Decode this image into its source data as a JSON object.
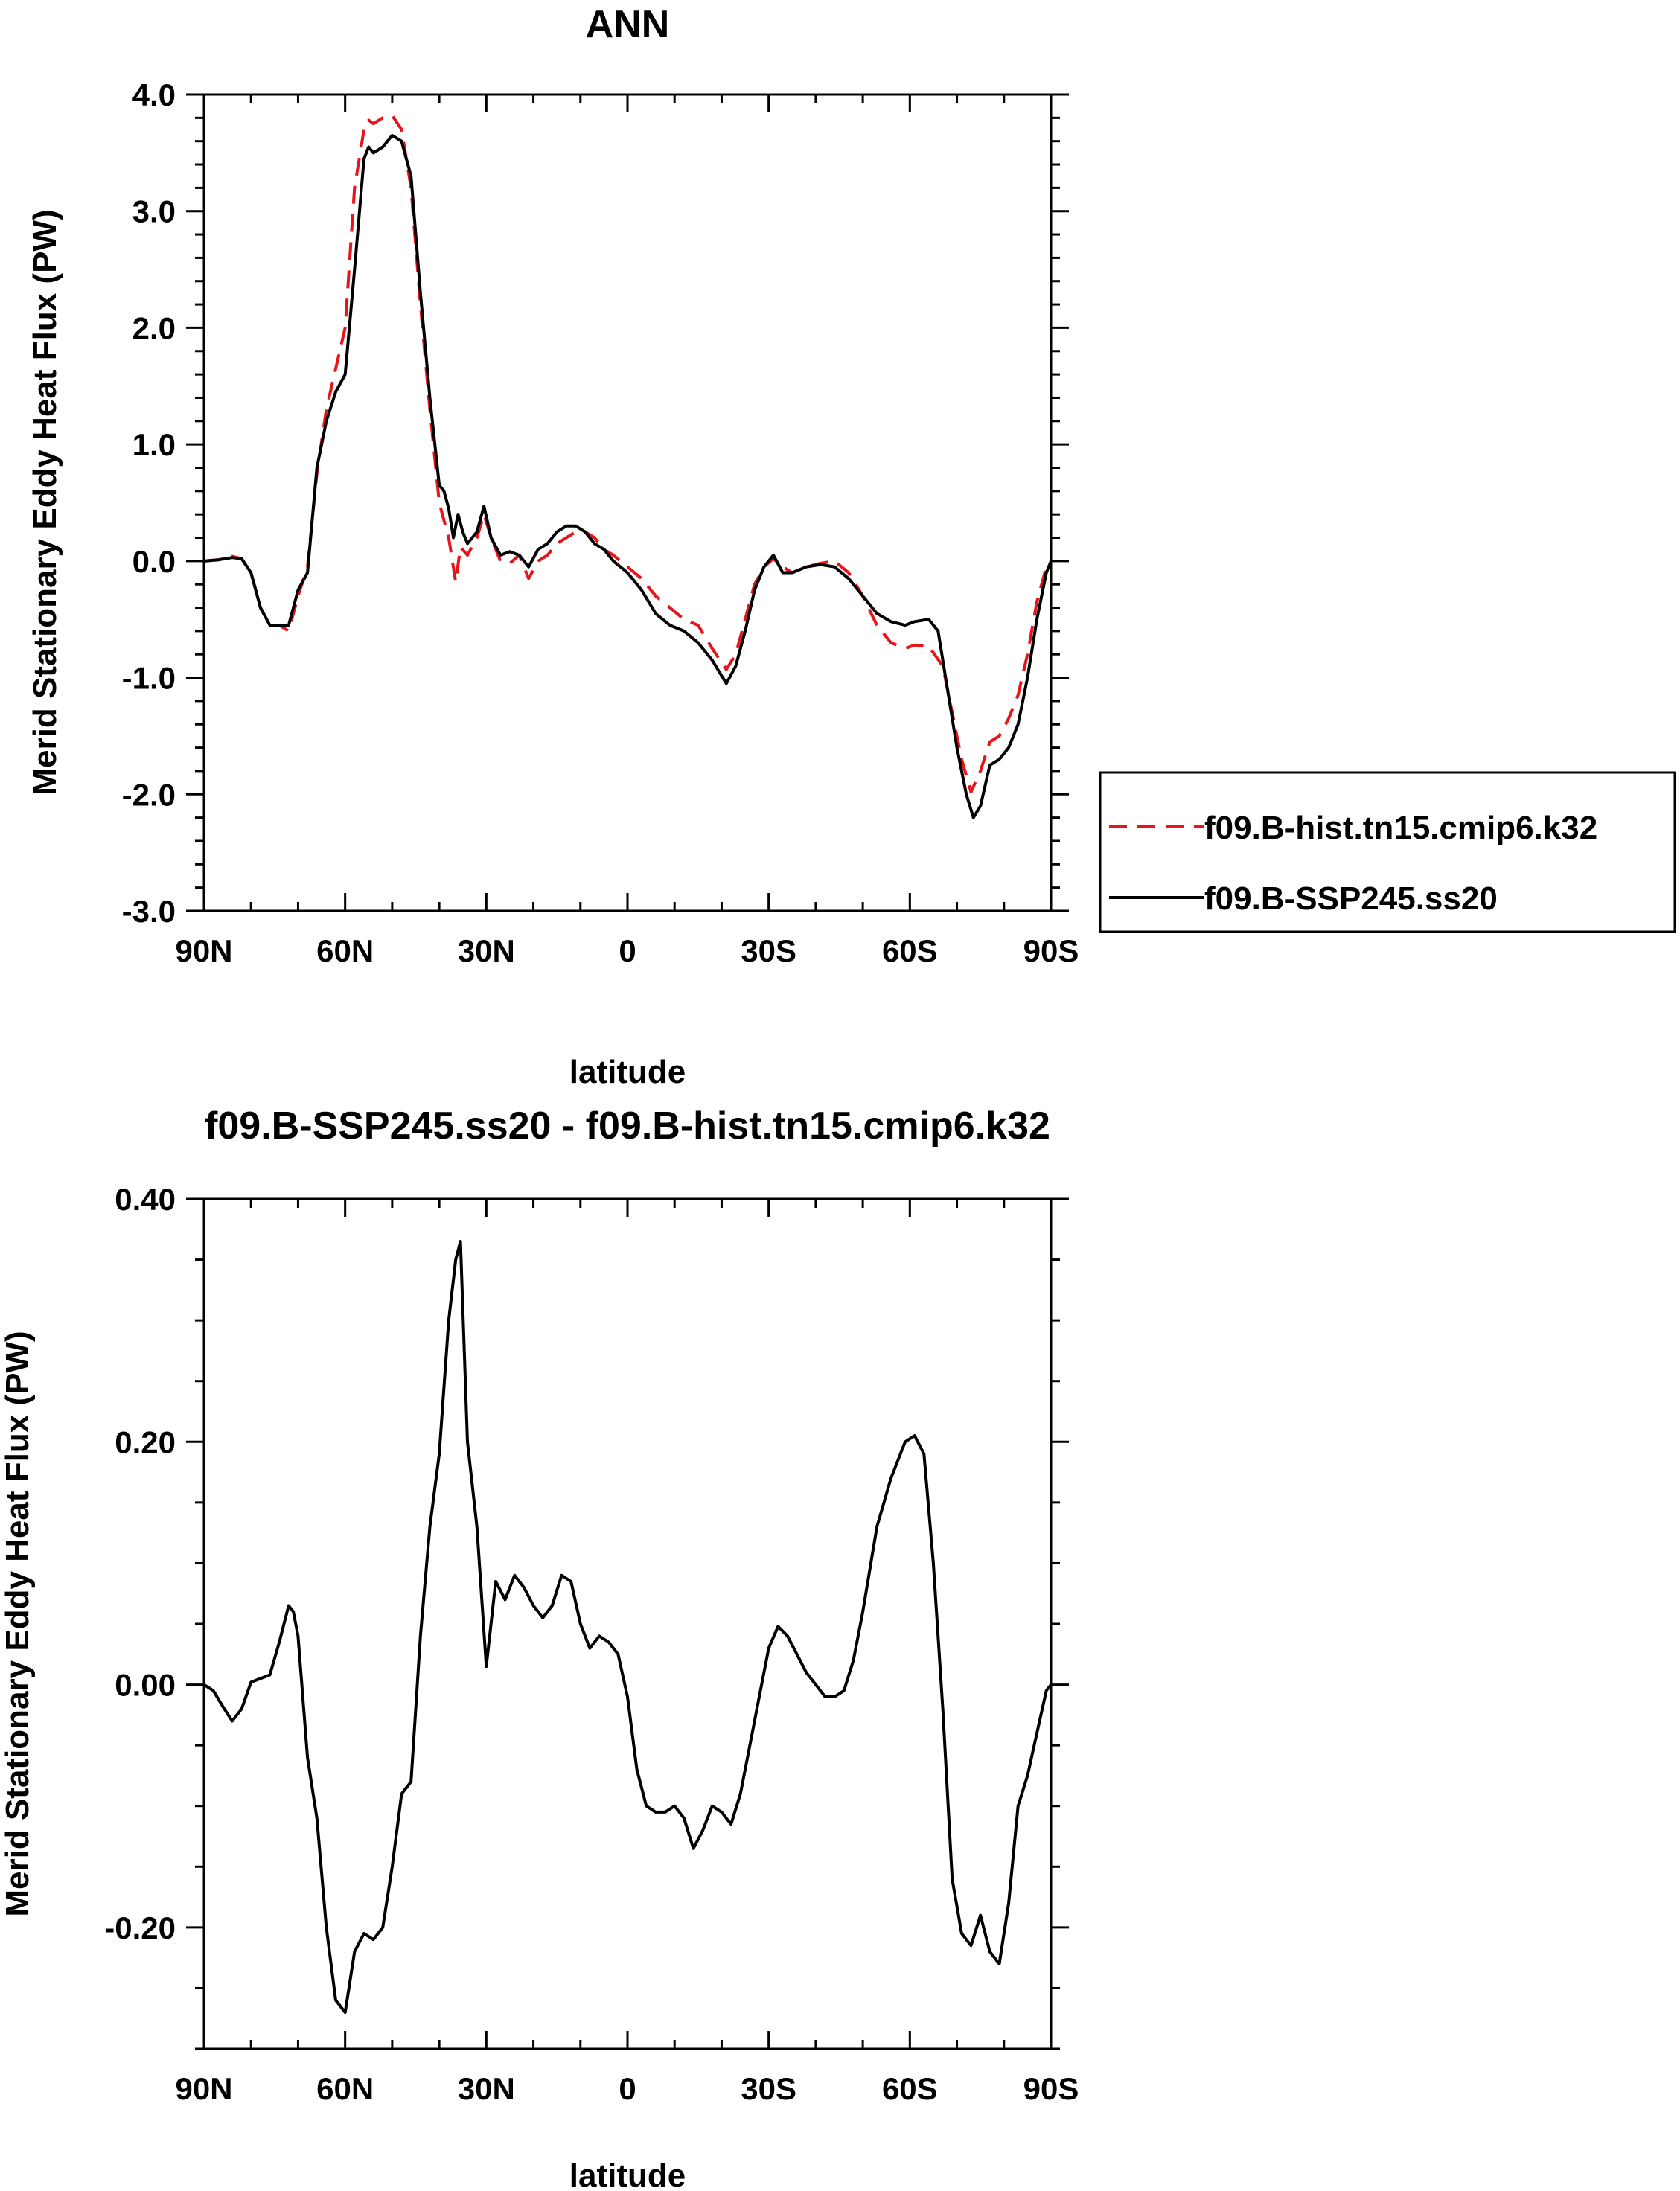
{
  "chart_data": [
    {
      "type": "line",
      "title": "ANN",
      "xlabel": "latitude",
      "ylabel": "Merid Stationary Eddy Heat Flux (PW)",
      "xlim": [
        90,
        -90
      ],
      "ylim": [
        -3.0,
        4.0
      ],
      "xticks": [
        90,
        60,
        30,
        0,
        -30,
        -60,
        -90
      ],
      "xtick_labels": [
        "90N",
        "60N",
        "30N",
        "0",
        "30S",
        "60S",
        "90S"
      ],
      "yticks": [
        4,
        3,
        2,
        1,
        0,
        -1,
        -2,
        -3
      ],
      "ytick_labels": [
        "4.0",
        "3.0",
        "2.0",
        "1.0",
        "0.0",
        "-1.0",
        "-2.0",
        "-3.0"
      ],
      "grid": false,
      "legend_position": "right",
      "series": [
        {
          "name": "f09.B-hist.tn15.cmip6.k32",
          "color": "#e8141b",
          "dash": "dashed",
          "points": [
            [
              90,
              0
            ],
            [
              87,
              0.01
            ],
            [
              84,
              0.04
            ],
            [
              82,
              0.02
            ],
            [
              80,
              -0.1
            ],
            [
              78,
              -0.4
            ],
            [
              76,
              -0.55
            ],
            [
              74,
              -0.55
            ],
            [
              72,
              -0.6
            ],
            [
              70,
              -0.3
            ],
            [
              68,
              -0.05
            ],
            [
              66,
              0.75
            ],
            [
              64,
              1.3
            ],
            [
              62,
              1.65
            ],
            [
              60,
              2.0
            ],
            [
              58,
              3.2
            ],
            [
              56,
              3.7
            ],
            [
              55,
              3.78
            ],
            [
              54,
              3.75
            ],
            [
              52,
              3.8
            ],
            [
              50,
              3.82
            ],
            [
              48,
              3.7
            ],
            [
              46,
              3.2
            ],
            [
              44,
              2.2
            ],
            [
              42,
              1.3
            ],
            [
              40,
              0.5
            ],
            [
              39,
              0.35
            ],
            [
              38,
              0.2
            ],
            [
              36.5,
              -0.18
            ],
            [
              35.5,
              0.12
            ],
            [
              34,
              0.05
            ],
            [
              32,
              0.2
            ],
            [
              30.5,
              0.4
            ],
            [
              29,
              0.2
            ],
            [
              27,
              0
            ],
            [
              25,
              -0.02
            ],
            [
              23,
              0.05
            ],
            [
              21,
              -0.15
            ],
            [
              19,
              0
            ],
            [
              17,
              0.05
            ],
            [
              15,
              0.15
            ],
            [
              13,
              0.2
            ],
            [
              11,
              0.25
            ],
            [
              9,
              0.25
            ],
            [
              7,
              0.2
            ],
            [
              5,
              0.1
            ],
            [
              3,
              0.05
            ],
            [
              0,
              -0.05
            ],
            [
              -3,
              -0.15
            ],
            [
              -6,
              -0.3
            ],
            [
              -9,
              -0.4
            ],
            [
              -12,
              -0.5
            ],
            [
              -15,
              -0.55
            ],
            [
              -18,
              -0.75
            ],
            [
              -21,
              -0.93
            ],
            [
              -23,
              -0.8
            ],
            [
              -25,
              -0.5
            ],
            [
              -27,
              -0.2
            ],
            [
              -29,
              -0.05
            ],
            [
              -31,
              0.02
            ],
            [
              -33,
              -0.05
            ],
            [
              -35,
              -0.1
            ],
            [
              -38,
              -0.05
            ],
            [
              -41,
              -0.02
            ],
            [
              -44,
              0
            ],
            [
              -47,
              -0.1
            ],
            [
              -50,
              -0.3
            ],
            [
              -53,
              -0.55
            ],
            [
              -56,
              -0.7
            ],
            [
              -59,
              -0.75
            ],
            [
              -61,
              -0.72
            ],
            [
              -64,
              -0.73
            ],
            [
              -67,
              -0.9
            ],
            [
              -69,
              -1.3
            ],
            [
              -71,
              -1.7
            ],
            [
              -73,
              -1.98
            ],
            [
              -75,
              -1.8
            ],
            [
              -77,
              -1.55
            ],
            [
              -79,
              -1.5
            ],
            [
              -81,
              -1.35
            ],
            [
              -83,
              -1.15
            ],
            [
              -85,
              -0.8
            ],
            [
              -87,
              -0.35
            ],
            [
              -89,
              -0.05
            ],
            [
              -90,
              0
            ]
          ]
        },
        {
          "name": "f09.B-SSP245.ss20",
          "color": "#000000",
          "dash": "solid",
          "points": [
            [
              90,
              0
            ],
            [
              87,
              0.01
            ],
            [
              84,
              0.03
            ],
            [
              82,
              0.02
            ],
            [
              80,
              -0.1
            ],
            [
              78,
              -0.4
            ],
            [
              76,
              -0.55
            ],
            [
              74,
              -0.55
            ],
            [
              72,
              -0.55
            ],
            [
              70,
              -0.25
            ],
            [
              68,
              -0.1
            ],
            [
              66,
              0.8
            ],
            [
              64,
              1.2
            ],
            [
              62,
              1.45
            ],
            [
              60,
              1.6
            ],
            [
              58,
              2.5
            ],
            [
              56,
              3.45
            ],
            [
              55,
              3.55
            ],
            [
              54,
              3.5
            ],
            [
              52,
              3.55
            ],
            [
              50,
              3.65
            ],
            [
              48,
              3.6
            ],
            [
              46,
              3.3
            ],
            [
              44,
              2.3
            ],
            [
              42,
              1.4
            ],
            [
              40,
              0.65
            ],
            [
              39,
              0.6
            ],
            [
              38,
              0.45
            ],
            [
              37,
              0.2
            ],
            [
              36,
              0.4
            ],
            [
              35,
              0.25
            ],
            [
              34,
              0.15
            ],
            [
              32,
              0.25
            ],
            [
              30.5,
              0.47
            ],
            [
              29,
              0.2
            ],
            [
              27,
              0.05
            ],
            [
              25,
              0.08
            ],
            [
              23,
              0.05
            ],
            [
              21,
              -0.05
            ],
            [
              19,
              0.1
            ],
            [
              17,
              0.15
            ],
            [
              15,
              0.25
            ],
            [
              13,
              0.3
            ],
            [
              11,
              0.3
            ],
            [
              9,
              0.25
            ],
            [
              7,
              0.15
            ],
            [
              5,
              0.1
            ],
            [
              3,
              0
            ],
            [
              0,
              -0.1
            ],
            [
              -3,
              -0.25
            ],
            [
              -6,
              -0.45
            ],
            [
              -9,
              -0.55
            ],
            [
              -12,
              -0.6
            ],
            [
              -15,
              -0.7
            ],
            [
              -18,
              -0.85
            ],
            [
              -21,
              -1.05
            ],
            [
              -23,
              -0.9
            ],
            [
              -25,
              -0.6
            ],
            [
              -27,
              -0.25
            ],
            [
              -29,
              -0.05
            ],
            [
              -31,
              0.05
            ],
            [
              -33,
              -0.1
            ],
            [
              -35,
              -0.1
            ],
            [
              -38,
              -0.05
            ],
            [
              -41,
              -0.03
            ],
            [
              -44,
              -0.05
            ],
            [
              -47,
              -0.15
            ],
            [
              -50,
              -0.3
            ],
            [
              -53,
              -0.45
            ],
            [
              -56,
              -0.52
            ],
            [
              -59,
              -0.55
            ],
            [
              -61,
              -0.52
            ],
            [
              -64,
              -0.5
            ],
            [
              -66,
              -0.6
            ],
            [
              -68,
              -1.1
            ],
            [
              -70,
              -1.6
            ],
            [
              -72,
              -2.0
            ],
            [
              -73.5,
              -2.2
            ],
            [
              -75,
              -2.1
            ],
            [
              -77,
              -1.75
            ],
            [
              -79,
              -1.7
            ],
            [
              -81,
              -1.6
            ],
            [
              -83,
              -1.4
            ],
            [
              -85,
              -1.0
            ],
            [
              -87,
              -0.5
            ],
            [
              -89,
              -0.1
            ],
            [
              -90,
              0
            ]
          ]
        }
      ]
    },
    {
      "type": "line",
      "title": "f09.B-SSP245.ss20 - f09.B-hist.tn15.cmip6.k32",
      "xlabel": "latitude",
      "ylabel": "Merid Stationary Eddy Heat Flux (PW)",
      "xlim": [
        90,
        -90
      ],
      "ylim": [
        -0.3,
        0.4
      ],
      "xticks": [
        90,
        60,
        30,
        0,
        -30,
        -60,
        -90
      ],
      "xtick_labels": [
        "90N",
        "60N",
        "30N",
        "0",
        "30S",
        "60S",
        "90S"
      ],
      "yticks": [
        0.4,
        0.2,
        0,
        -0.2
      ],
      "ytick_labels": [
        "0.40",
        "0.20",
        "0.00",
        "-0.20"
      ],
      "grid": false,
      "series": [
        {
          "color": "#000000",
          "dash": "solid",
          "points": [
            [
              90,
              0
            ],
            [
              88,
              -0.005
            ],
            [
              86,
              -0.018
            ],
            [
              84,
              -0.03
            ],
            [
              82,
              -0.02
            ],
            [
              80,
              0.002
            ],
            [
              78,
              0.005
            ],
            [
              76,
              0.008
            ],
            [
              74,
              0.035
            ],
            [
              72,
              0.065
            ],
            [
              71,
              0.06
            ],
            [
              70,
              0.04
            ],
            [
              68,
              -0.06
            ],
            [
              66,
              -0.11
            ],
            [
              64,
              -0.2
            ],
            [
              62,
              -0.26
            ],
            [
              60,
              -0.27
            ],
            [
              58,
              -0.22
            ],
            [
              56,
              -0.205
            ],
            [
              54,
              -0.21
            ],
            [
              52,
              -0.2
            ],
            [
              50,
              -0.15
            ],
            [
              48,
              -0.09
            ],
            [
              46,
              -0.08
            ],
            [
              44,
              0.04
            ],
            [
              42,
              0.13
            ],
            [
              40,
              0.19
            ],
            [
              38,
              0.3
            ],
            [
              36.5,
              0.35
            ],
            [
              35.5,
              0.365
            ],
            [
              34,
              0.2
            ],
            [
              32,
              0.13
            ],
            [
              30,
              0.015
            ],
            [
              28,
              0.085
            ],
            [
              26,
              0.07
            ],
            [
              24,
              0.09
            ],
            [
              22,
              0.08
            ],
            [
              20,
              0.065
            ],
            [
              18,
              0.055
            ],
            [
              16,
              0.065
            ],
            [
              14,
              0.09
            ],
            [
              12,
              0.085
            ],
            [
              10,
              0.05
            ],
            [
              8,
              0.03
            ],
            [
              6,
              0.04
            ],
            [
              4,
              0.035
            ],
            [
              2,
              0.025
            ],
            [
              0,
              -0.01
            ],
            [
              -2,
              -0.07
            ],
            [
              -4,
              -0.1
            ],
            [
              -6,
              -0.105
            ],
            [
              -8,
              -0.105
            ],
            [
              -10,
              -0.1
            ],
            [
              -12,
              -0.11
            ],
            [
              -14,
              -0.135
            ],
            [
              -16,
              -0.12
            ],
            [
              -18,
              -0.1
            ],
            [
              -20,
              -0.105
            ],
            [
              -22,
              -0.115
            ],
            [
              -24,
              -0.09
            ],
            [
              -26,
              -0.05
            ],
            [
              -28,
              -0.01
            ],
            [
              -30,
              0.03
            ],
            [
              -32,
              0.048
            ],
            [
              -34,
              0.04
            ],
            [
              -36,
              0.025
            ],
            [
              -38,
              0.01
            ],
            [
              -40,
              0
            ],
            [
              -42,
              -0.01
            ],
            [
              -44,
              -0.01
            ],
            [
              -46,
              -0.005
            ],
            [
              -48,
              0.02
            ],
            [
              -50,
              0.06
            ],
            [
              -53,
              0.13
            ],
            [
              -56,
              0.17
            ],
            [
              -59,
              0.2
            ],
            [
              -61,
              0.205
            ],
            [
              -63,
              0.19
            ],
            [
              -65,
              0.1
            ],
            [
              -67,
              -0.02
            ],
            [
              -69,
              -0.16
            ],
            [
              -71,
              -0.205
            ],
            [
              -73,
              -0.215
            ],
            [
              -75,
              -0.19
            ],
            [
              -77,
              -0.22
            ],
            [
              -79,
              -0.23
            ],
            [
              -81,
              -0.18
            ],
            [
              -83,
              -0.1
            ],
            [
              -85,
              -0.075
            ],
            [
              -87,
              -0.04
            ],
            [
              -89,
              -0.005
            ],
            [
              -90,
              0
            ]
          ]
        }
      ]
    }
  ]
}
